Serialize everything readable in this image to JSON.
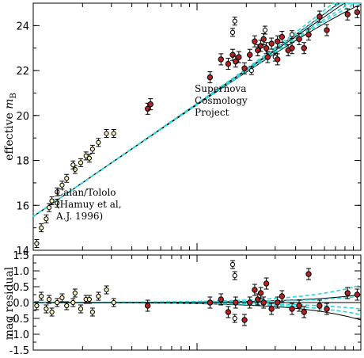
{
  "chart_data": [
    {
      "type": "scatter",
      "panel": "top",
      "ylabel": "effective m_B",
      "ylabel_main": "effective ",
      "ylabel_math": "m",
      "ylabel_sub": "B",
      "x_scale": "log",
      "xlim": [
        0.01,
        1.0
      ],
      "ylim": [
        14,
        25
      ],
      "yticks": [
        14,
        16,
        18,
        20,
        22,
        24
      ],
      "ytick_labels": [
        "14",
        "16",
        "18",
        "20",
        "22",
        "24"
      ],
      "grid": false,
      "annotations": [
        {
          "lines": [
            "Supernova",
            "Cosmology",
            "Project"
          ]
        },
        {
          "lines": [
            "Calan/Tololo",
            "(Hamuy et al,",
            "A.J. 1996)"
          ]
        }
      ],
      "series": [
        {
          "marker": "open-circle",
          "points": [
            {
              "x": 0.0105,
              "y": 14.3
            },
            {
              "x": 0.0112,
              "y": 15.0
            },
            {
              "x": 0.012,
              "y": 15.4
            },
            {
              "x": 0.0125,
              "y": 15.9
            },
            {
              "x": 0.013,
              "y": 16.2
            },
            {
              "x": 0.014,
              "y": 16.6
            },
            {
              "x": 0.015,
              "y": 16.9
            },
            {
              "x": 0.016,
              "y": 17.2
            },
            {
              "x": 0.018,
              "y": 17.6
            },
            {
              "x": 0.0195,
              "y": 17.9
            },
            {
              "x": 0.021,
              "y": 18.2
            },
            {
              "x": 0.023,
              "y": 18.5
            },
            {
              "x": 0.025,
              "y": 18.8
            },
            {
              "x": 0.028,
              "y": 19.2
            },
            {
              "x": 0.031,
              "y": 19.2
            },
            {
              "x": 0.014,
              "y": 16.1
            },
            {
              "x": 0.0175,
              "y": 17.8
            },
            {
              "x": 0.022,
              "y": 18.1
            },
            {
              "x": 0.3,
              "y": 22.6
            },
            {
              "x": 0.165,
              "y": 23.7
            },
            {
              "x": 0.17,
              "y": 24.2
            },
            {
              "x": 0.38,
              "y": 23.6
            },
            {
              "x": 0.26,
              "y": 23.8
            },
            {
              "x": 0.215,
              "y": 22.0
            }
          ]
        },
        {
          "marker": "filled-circle",
          "points": [
            {
              "x": 0.05,
              "y": 20.3
            },
            {
              "x": 0.052,
              "y": 20.5
            },
            {
              "x": 0.12,
              "y": 21.7
            },
            {
              "x": 0.14,
              "y": 22.5
            },
            {
              "x": 0.155,
              "y": 22.3
            },
            {
              "x": 0.165,
              "y": 22.7
            },
            {
              "x": 0.172,
              "y": 22.4
            },
            {
              "x": 0.18,
              "y": 22.6
            },
            {
              "x": 0.195,
              "y": 22.1
            },
            {
              "x": 0.21,
              "y": 22.7
            },
            {
              "x": 0.225,
              "y": 23.3
            },
            {
              "x": 0.235,
              "y": 22.9
            },
            {
              "x": 0.245,
              "y": 23.1
            },
            {
              "x": 0.255,
              "y": 23.4
            },
            {
              "x": 0.265,
              "y": 23.0
            },
            {
              "x": 0.27,
              "y": 22.6
            },
            {
              "x": 0.285,
              "y": 23.2
            },
            {
              "x": 0.31,
              "y": 23.3
            },
            {
              "x": 0.33,
              "y": 23.5
            },
            {
              "x": 0.36,
              "y": 22.9
            },
            {
              "x": 0.38,
              "y": 23.0
            },
            {
              "x": 0.42,
              "y": 23.4
            },
            {
              "x": 0.45,
              "y": 23.0
            },
            {
              "x": 0.48,
              "y": 23.6
            },
            {
              "x": 0.56,
              "y": 24.4
            },
            {
              "x": 0.62,
              "y": 23.8
            },
            {
              "x": 0.83,
              "y": 24.5
            },
            {
              "x": 0.95,
              "y": 24.6
            },
            {
              "x": 0.31,
              "y": 22.5
            }
          ]
        }
      ],
      "model_curves": [
        {
          "style": "solid",
          "offset": 0.25
        },
        {
          "style": "solid",
          "offset": 0.0
        },
        {
          "style": "solid",
          "offset": -0.55
        },
        {
          "style": "dashed",
          "offset": 0.55
        },
        {
          "style": "dashed",
          "offset": 0.2
        },
        {
          "style": "dashed",
          "offset": -0.2
        },
        {
          "style": "dashed",
          "offset": -0.38
        }
      ]
    },
    {
      "type": "scatter",
      "panel": "bottom",
      "ylabel": "mag residual",
      "x_scale": "log",
      "xlim": [
        0.01,
        1.0
      ],
      "ylim": [
        -1.5,
        1.5
      ],
      "yticks": [
        -1.5,
        -1.0,
        -0.5,
        0.0,
        0.5,
        1.0,
        1.5
      ],
      "ytick_labels": [
        "-1.5",
        "-1.0",
        "-0.5",
        "0.0",
        "0.5",
        "1.0",
        "1.5"
      ],
      "grid": false,
      "series": [
        {
          "marker": "open-circle",
          "points": [
            {
              "x": 0.0105,
              "y": -0.1
            },
            {
              "x": 0.0112,
              "y": 0.2
            },
            {
              "x": 0.012,
              "y": -0.2
            },
            {
              "x": 0.0125,
              "y": 0.1
            },
            {
              "x": 0.013,
              "y": -0.3
            },
            {
              "x": 0.014,
              "y": 0.0
            },
            {
              "x": 0.015,
              "y": 0.15
            },
            {
              "x": 0.016,
              "y": -0.1
            },
            {
              "x": 0.018,
              "y": 0.3
            },
            {
              "x": 0.0195,
              "y": -0.2
            },
            {
              "x": 0.021,
              "y": 0.1
            },
            {
              "x": 0.023,
              "y": -0.3
            },
            {
              "x": 0.025,
              "y": 0.2
            },
            {
              "x": 0.028,
              "y": 0.4
            },
            {
              "x": 0.031,
              "y": 0.0
            },
            {
              "x": 0.0175,
              "y": 0.0
            },
            {
              "x": 0.022,
              "y": 0.1
            },
            {
              "x": 0.165,
              "y": 1.2
            },
            {
              "x": 0.17,
              "y": 0.85
            },
            {
              "x": 0.17,
              "y": -0.5
            }
          ]
        },
        {
          "marker": "filled-circle",
          "points": [
            {
              "x": 0.05,
              "y": -0.1
            },
            {
              "x": 0.12,
              "y": 0.0
            },
            {
              "x": 0.14,
              "y": 0.1
            },
            {
              "x": 0.155,
              "y": -0.3
            },
            {
              "x": 0.172,
              "y": 0.0
            },
            {
              "x": 0.195,
              "y": -0.55
            },
            {
              "x": 0.21,
              "y": 0.0
            },
            {
              "x": 0.225,
              "y": 0.4
            },
            {
              "x": 0.235,
              "y": 0.1
            },
            {
              "x": 0.245,
              "y": 0.3
            },
            {
              "x": 0.255,
              "y": 0.0
            },
            {
              "x": 0.265,
              "y": 0.6
            },
            {
              "x": 0.285,
              "y": -0.2
            },
            {
              "x": 0.31,
              "y": 0.0
            },
            {
              "x": 0.33,
              "y": 0.2
            },
            {
              "x": 0.38,
              "y": -0.2
            },
            {
              "x": 0.42,
              "y": -0.1
            },
            {
              "x": 0.45,
              "y": -0.3
            },
            {
              "x": 0.48,
              "y": 0.9
            },
            {
              "x": 0.56,
              "y": -0.1
            },
            {
              "x": 0.62,
              "y": -0.2
            },
            {
              "x": 0.83,
              "y": 0.3
            },
            {
              "x": 0.95,
              "y": 0.25
            }
          ]
        }
      ],
      "model_curves": [
        {
          "style": "solid",
          "offset": 0.25
        },
        {
          "style": "solid",
          "offset": 0.0
        },
        {
          "style": "solid",
          "offset": -0.55
        },
        {
          "style": "dashed",
          "offset": 0.55
        },
        {
          "style": "dashed",
          "offset": 0.2
        },
        {
          "style": "dashed",
          "offset": -0.2
        },
        {
          "style": "dashed",
          "offset": -0.38
        }
      ]
    }
  ],
  "colors": {
    "filled_marker": "#b22222",
    "open_marker_edge": "#000000",
    "open_marker_fill": "#ffffff",
    "early_open_fill": "#f5f0b8",
    "dashed_curve": "#2ed5d5",
    "solid_curve": "#000000",
    "axis": "#000000"
  }
}
